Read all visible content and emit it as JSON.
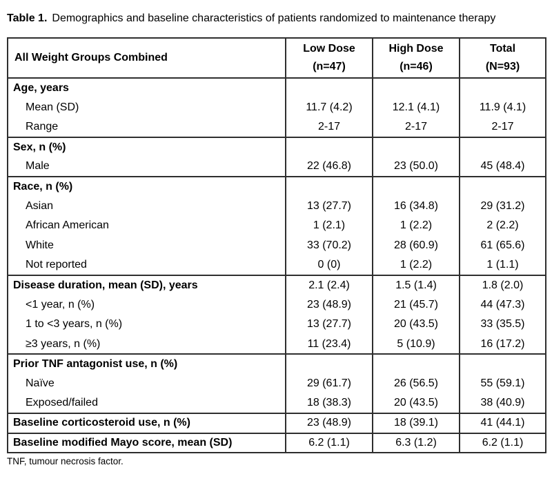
{
  "title": {
    "label": "Table 1.",
    "text": "Demographics and baseline characteristics of patients randomized to maintenance therapy"
  },
  "colors": {
    "background": "#ffffff",
    "text": "#000000",
    "border": "#2e2e2e"
  },
  "table": {
    "header": {
      "row_label": "All Weight Groups Combined",
      "columns": [
        {
          "line1": "Low Dose",
          "line2": "(n=47)"
        },
        {
          "line1": "High Dose",
          "line2": "(n=46)"
        },
        {
          "line1": "Total",
          "line2": "(N=93)"
        }
      ]
    },
    "rows": [
      {
        "label": "Age, years",
        "style": "section",
        "values": [
          "",
          "",
          ""
        ],
        "section_end": false
      },
      {
        "label": "Mean (SD)",
        "style": "sub",
        "values": [
          "11.7 (4.2)",
          "12.1 (4.1)",
          "11.9 (4.1)"
        ],
        "section_end": false
      },
      {
        "label": "Range",
        "style": "sub",
        "values": [
          "2-17",
          "2-17",
          "2-17"
        ],
        "section_end": true
      },
      {
        "label": "Sex, n (%)",
        "style": "section",
        "values": [
          "",
          "",
          ""
        ],
        "section_end": false
      },
      {
        "label": "Male",
        "style": "sub",
        "values": [
          "22 (46.8)",
          "23 (50.0)",
          "45 (48.4)"
        ],
        "section_end": true
      },
      {
        "label": "Race, n (%)",
        "style": "section",
        "values": [
          "",
          "",
          ""
        ],
        "section_end": false
      },
      {
        "label": "Asian",
        "style": "sub",
        "values": [
          "13 (27.7)",
          "16 (34.8)",
          "29 (31.2)"
        ],
        "section_end": false
      },
      {
        "label": "African American",
        "style": "sub",
        "values": [
          "1 (2.1)",
          "1 (2.2)",
          "2 (2.2)"
        ],
        "section_end": false
      },
      {
        "label": "White",
        "style": "sub",
        "values": [
          "33 (70.2)",
          "28 (60.9)",
          "61 (65.6)"
        ],
        "section_end": false
      },
      {
        "label": "Not reported",
        "style": "sub",
        "values": [
          "0 (0)",
          "1 (2.2)",
          "1 (1.1)"
        ],
        "section_end": true
      },
      {
        "label": "Disease duration, mean (SD), years",
        "style": "section",
        "values": [
          "2.1 (2.4)",
          "1.5 (1.4)",
          "1.8 (2.0)"
        ],
        "section_end": false
      },
      {
        "label": "<1 year, n (%)",
        "style": "sub",
        "values": [
          "23 (48.9)",
          "21 (45.7)",
          "44 (47.3)"
        ],
        "section_end": false
      },
      {
        "label": "1 to <3 years, n (%)",
        "style": "sub",
        "values": [
          "13 (27.7)",
          "20 (43.5)",
          "33 (35.5)"
        ],
        "section_end": false
      },
      {
        "label": "≥3 years, n (%)",
        "style": "sub",
        "values": [
          "11 (23.4)",
          "5 (10.9)",
          "16 (17.2)"
        ],
        "section_end": true
      },
      {
        "label": "Prior TNF antagonist use, n (%)",
        "style": "section",
        "values": [
          "",
          "",
          ""
        ],
        "section_end": false
      },
      {
        "label": "Naïve",
        "style": "sub",
        "values": [
          "29 (61.7)",
          "26 (56.5)",
          "55 (59.1)"
        ],
        "section_end": false
      },
      {
        "label": "Exposed/failed",
        "style": "sub",
        "values": [
          "18 (38.3)",
          "20 (43.5)",
          "38 (40.9)"
        ],
        "section_end": true
      },
      {
        "label": "Baseline corticosteroid use, n (%)",
        "style": "section",
        "values": [
          "23 (48.9)",
          "18 (39.1)",
          "41 (44.1)"
        ],
        "section_end": true
      },
      {
        "label": "Baseline modified Mayo score, mean (SD)",
        "style": "section",
        "values": [
          "6.2 (1.1)",
          "6.3 (1.2)",
          "6.2 (1.1)"
        ],
        "section_end": false
      }
    ]
  },
  "footnote": "TNF, tumour necrosis factor."
}
